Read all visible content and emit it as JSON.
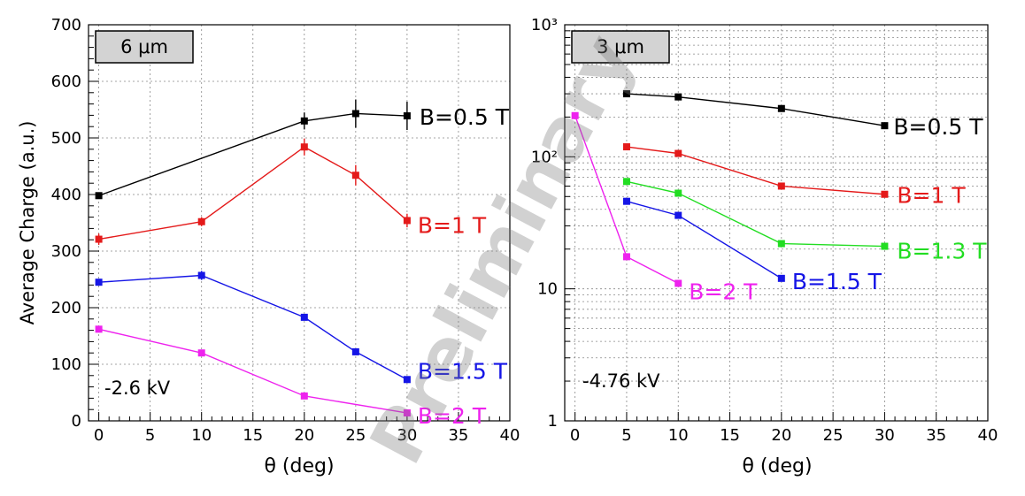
{
  "watermark": "Preliminary",
  "chart_data": [
    {
      "type": "line",
      "panel_label": "6 μm",
      "annotation": "-2.6 kV",
      "xlabel": "θ (deg)",
      "ylabel": "Average Charge (a.u.)",
      "xlim": [
        -1,
        40
      ],
      "ylim": [
        0,
        700
      ],
      "yscale": "linear",
      "xticks": [
        0,
        5,
        10,
        15,
        20,
        25,
        30,
        35,
        40
      ],
      "yticks": [
        0,
        100,
        200,
        300,
        400,
        500,
        600,
        700
      ],
      "grid": true,
      "series": [
        {
          "name": "B=0.5 T",
          "color": "#000000",
          "x": [
            0,
            20,
            25,
            30
          ],
          "y": [
            398,
            530,
            543,
            539
          ],
          "err": [
            0,
            15,
            25,
            25
          ]
        },
        {
          "name": "B=1 T",
          "color": "#e41a1a",
          "x": [
            0,
            10,
            20,
            25,
            30
          ],
          "y": [
            321,
            352,
            484,
            434,
            354
          ],
          "err": [
            10,
            8,
            15,
            18,
            12
          ]
        },
        {
          "name": "B=1.5 T",
          "color": "#1515e6",
          "x": [
            0,
            10,
            20,
            25,
            30
          ],
          "y": [
            245,
            257,
            183,
            122,
            73
          ],
          "err": [
            5,
            8,
            5,
            5,
            5
          ]
        },
        {
          "name": "B=2 T",
          "color": "#ee22ee",
          "x": [
            0,
            10,
            20,
            30
          ],
          "y": [
            162,
            120,
            44,
            14
          ],
          "err": [
            3,
            3,
            3,
            3
          ]
        }
      ]
    },
    {
      "type": "line",
      "panel_label": "3 μm",
      "annotation": "-4.76 kV",
      "xlabel": "θ (deg)",
      "ylabel": "",
      "xlim": [
        -1,
        40
      ],
      "ylim": [
        1,
        1000
      ],
      "yscale": "log",
      "xticks": [
        0,
        5,
        10,
        15,
        20,
        25,
        30,
        35,
        40
      ],
      "ytick_labels": [
        "1",
        "10",
        "10²",
        "10³"
      ],
      "grid": true,
      "series": [
        {
          "name": "B=0.5 T",
          "color": "#000000",
          "x": [
            5,
            10,
            20,
            30
          ],
          "y": [
            300,
            284,
            232,
            172
          ]
        },
        {
          "name": "B=1 T",
          "color": "#e41a1a",
          "x": [
            5,
            10,
            20,
            30
          ],
          "y": [
            119,
            106,
            60,
            52
          ]
        },
        {
          "name": "B=1.3 T",
          "color": "#22dd22",
          "x": [
            5,
            10,
            20,
            30
          ],
          "y": [
            65,
            53,
            22,
            21
          ]
        },
        {
          "name": "B=1.5 T",
          "color": "#1515e6",
          "x": [
            5,
            10,
            20
          ],
          "y": [
            46,
            36,
            12
          ]
        },
        {
          "name": "B=2 T",
          "color": "#ee22ee",
          "x": [
            0,
            5,
            10
          ],
          "y": [
            205,
            17.5,
            11
          ]
        }
      ]
    }
  ]
}
